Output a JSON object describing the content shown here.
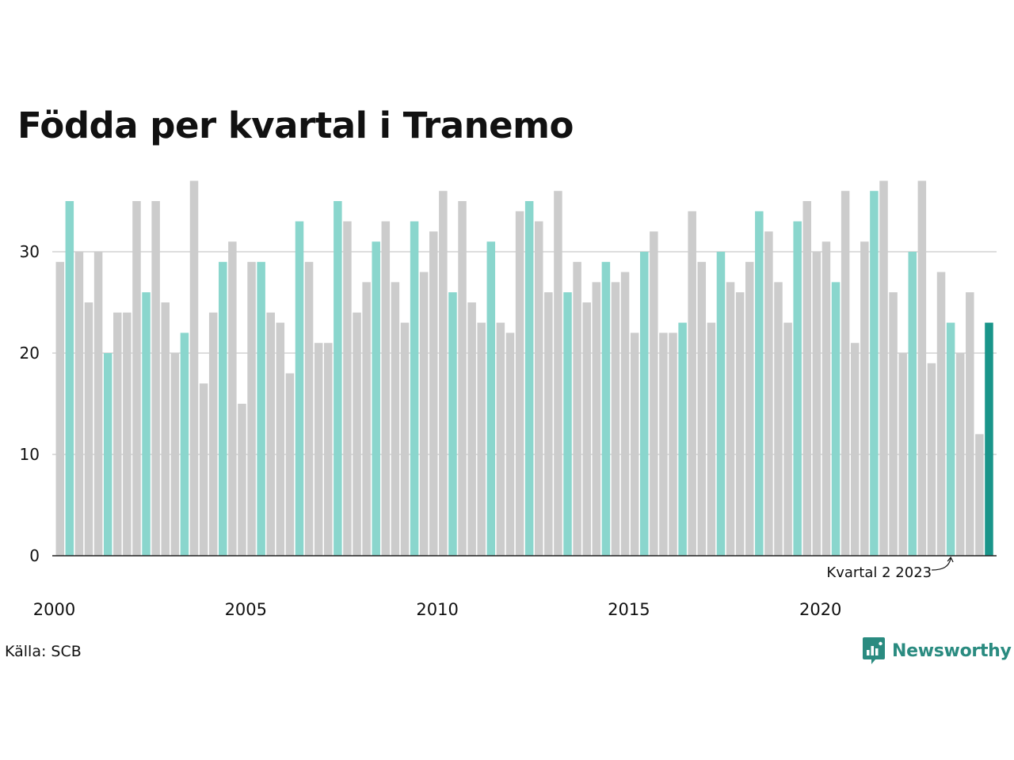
{
  "title": "Födda per kvartal i Tranemo",
  "source": "Källa: SCB",
  "brand": {
    "name": "Newsworthy",
    "icon": "chart-bubble-icon",
    "color": "#2a8b80"
  },
  "colors": {
    "highlight": "#8ad6cd",
    "default": "#cccccc",
    "latest": "#1a958a",
    "grid": "#dddddd",
    "axis": "#222222"
  },
  "chart_data": {
    "type": "bar",
    "title": "Födda per kvartal i Tranemo",
    "xlabel": "",
    "ylabel": "",
    "ylim": [
      0,
      37
    ],
    "yticks": [
      0,
      10,
      20,
      30
    ],
    "xtick_labels": [
      "2000",
      "2005",
      "2010",
      "2015",
      "2020"
    ],
    "start_year": 2000,
    "grid": true,
    "highlight_quarter": 2,
    "values": [
      29,
      35,
      30,
      25,
      30,
      20,
      24,
      24,
      35,
      26,
      35,
      25,
      20,
      22,
      37,
      17,
      24,
      29,
      31,
      15,
      29,
      29,
      24,
      23,
      18,
      33,
      29,
      21,
      21,
      35,
      33,
      24,
      27,
      31,
      33,
      27,
      23,
      33,
      28,
      32,
      36,
      26,
      35,
      25,
      23,
      31,
      23,
      22,
      34,
      35,
      33,
      26,
      36,
      26,
      29,
      25,
      27,
      29,
      27,
      28,
      22,
      30,
      32,
      22,
      22,
      23,
      34,
      29,
      23,
      30,
      27,
      26,
      29,
      34,
      32,
      27,
      23,
      33,
      35,
      30,
      31,
      27,
      36,
      21,
      31,
      36,
      37,
      26,
      20,
      30,
      37,
      19,
      28,
      23,
      20,
      26,
      12,
      23
    ],
    "annotation": {
      "text": "Kvartal 2 2023",
      "year": 2023,
      "quarter": 2
    }
  }
}
